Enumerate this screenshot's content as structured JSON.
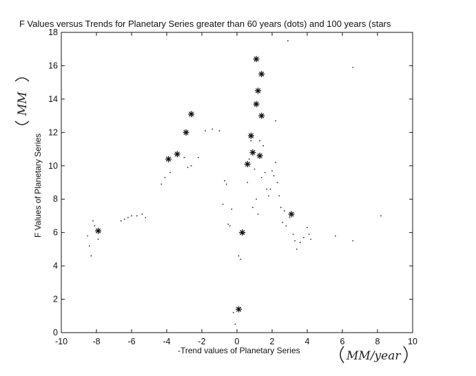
{
  "chart_data": {
    "type": "scatter",
    "title": "F Values versus Trends for Planetary Series greater than 60 years (dots) and 100 years (stars",
    "xlabel": "-Trend values of Planetary Series",
    "ylabel": "F Values of Planetary Series",
    "x_unit_handwritten": "MM/year",
    "y_unit_handwritten": "MM",
    "xlim": [
      -10,
      10
    ],
    "ylim": [
      0,
      18
    ],
    "xticks": [
      "-10",
      "-8",
      "-6",
      "-4",
      "-2",
      "0",
      "2",
      "4",
      "6",
      "8",
      "10"
    ],
    "yticks": [
      "0",
      "2",
      "4",
      "6",
      "8",
      "10",
      "12",
      "14",
      "16",
      "18"
    ],
    "grid": false,
    "series": [
      {
        "marker": "dot",
        "points": [
          [
            -8.5,
            5.8
          ],
          [
            -8.4,
            5.2
          ],
          [
            -8.3,
            4.6
          ],
          [
            -8.2,
            6.7
          ],
          [
            -8.1,
            6.4
          ],
          [
            -7.9,
            5.6
          ],
          [
            -7.8,
            6.0
          ],
          [
            -6.6,
            6.7
          ],
          [
            -6.4,
            6.8
          ],
          [
            -6.2,
            6.9
          ],
          [
            -6.0,
            7.0
          ],
          [
            -5.7,
            7.0
          ],
          [
            -5.4,
            7.1
          ],
          [
            -5.2,
            6.9
          ],
          [
            -4.3,
            8.9
          ],
          [
            -4.1,
            9.3
          ],
          [
            -3.8,
            9.6
          ],
          [
            -3.0,
            10.5
          ],
          [
            -2.8,
            9.9
          ],
          [
            -2.6,
            10.0
          ],
          [
            -2.2,
            10.5
          ],
          [
            -1.8,
            12.1
          ],
          [
            -1.4,
            12.2
          ],
          [
            -1.0,
            12.1
          ],
          [
            -0.8,
            7.7
          ],
          [
            -0.7,
            9.1
          ],
          [
            -0.6,
            8.9
          ],
          [
            -0.5,
            6.5
          ],
          [
            -0.4,
            6.4
          ],
          [
            -0.3,
            7.4
          ],
          [
            -0.2,
            1.2
          ],
          [
            -0.1,
            0.5
          ],
          [
            0.1,
            4.6
          ],
          [
            0.2,
            4.4
          ],
          [
            0.4,
            6.0
          ],
          [
            0.6,
            9.0
          ],
          [
            0.7,
            10.4
          ],
          [
            0.8,
            11.5
          ],
          [
            0.9,
            7.5
          ],
          [
            1.0,
            9.8
          ],
          [
            1.1,
            8.0
          ],
          [
            1.2,
            7.1
          ],
          [
            1.3,
            11.5
          ],
          [
            1.4,
            9.3
          ],
          [
            1.5,
            11.2
          ],
          [
            1.6,
            9.6
          ],
          [
            1.7,
            8.6
          ],
          [
            1.8,
            8.2
          ],
          [
            1.9,
            8.6
          ],
          [
            2.0,
            9.7
          ],
          [
            2.1,
            9.4
          ],
          [
            2.2,
            10.2
          ],
          [
            2.3,
            9.0
          ],
          [
            2.4,
            8.2
          ],
          [
            2.5,
            7.5
          ],
          [
            2.6,
            6.6
          ],
          [
            2.7,
            7.3
          ],
          [
            2.8,
            6.4
          ],
          [
            3.0,
            6.9
          ],
          [
            3.2,
            5.9
          ],
          [
            3.3,
            5.5
          ],
          [
            3.4,
            5.0
          ],
          [
            3.6,
            5.4
          ],
          [
            3.8,
            5.7
          ],
          [
            4.0,
            6.3
          ],
          [
            4.1,
            5.9
          ],
          [
            4.2,
            5.6
          ],
          [
            5.6,
            5.8
          ],
          [
            6.6,
            5.5
          ],
          [
            6.6,
            15.9
          ],
          [
            2.2,
            12.7
          ],
          [
            2.9,
            17.5
          ],
          [
            8.2,
            7.0
          ]
        ]
      },
      {
        "marker": "star",
        "points": [
          [
            -7.9,
            6.1
          ],
          [
            -3.9,
            10.4
          ],
          [
            -3.4,
            10.7
          ],
          [
            -2.9,
            12.0
          ],
          [
            -2.6,
            13.1
          ],
          [
            0.1,
            1.4
          ],
          [
            0.3,
            6.0
          ],
          [
            0.6,
            10.1
          ],
          [
            0.8,
            11.8
          ],
          [
            0.9,
            10.8
          ],
          [
            1.1,
            16.4
          ],
          [
            1.1,
            13.7
          ],
          [
            1.2,
            14.5
          ],
          [
            1.3,
            10.6
          ],
          [
            1.4,
            15.5
          ],
          [
            1.4,
            13.0
          ],
          [
            3.1,
            7.1
          ]
        ]
      }
    ]
  }
}
